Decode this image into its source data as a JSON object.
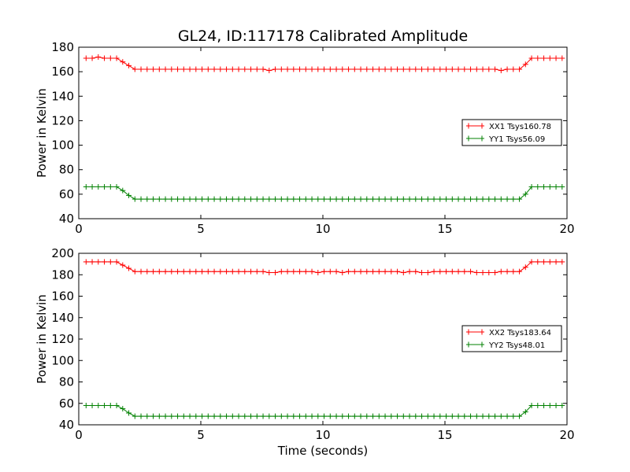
{
  "title": "GL24, ID:117178 Calibrated Amplitude",
  "chart_data": [
    {
      "type": "line",
      "ylabel": "Power in Kelvin",
      "xlabel": "",
      "xlim": [
        0,
        20
      ],
      "ylim": [
        40,
        180
      ],
      "xticks": [
        "0",
        "5",
        "10",
        "15",
        "20"
      ],
      "yticks": [
        "40",
        "60",
        "80",
        "100",
        "120",
        "140",
        "160",
        "180"
      ],
      "legend_position": "center-right",
      "series": [
        {
          "name": "XX1 Tsys160.78",
          "color": "#ff0000",
          "x": [
            0.3,
            0.55,
            0.8,
            1.05,
            1.3,
            1.55,
            1.8,
            2.05,
            2.3,
            2.55,
            2.8,
            3.05,
            3.3,
            3.55,
            3.8,
            4.05,
            4.3,
            4.55,
            4.8,
            5.05,
            5.3,
            5.55,
            5.8,
            6.05,
            6.3,
            6.55,
            6.8,
            7.05,
            7.3,
            7.55,
            7.8,
            8.05,
            8.3,
            8.55,
            8.8,
            9.05,
            9.3,
            9.55,
            9.8,
            10.05,
            10.3,
            10.55,
            10.8,
            11.05,
            11.3,
            11.55,
            11.8,
            12.05,
            12.3,
            12.55,
            12.8,
            13.05,
            13.3,
            13.55,
            13.8,
            14.05,
            14.3,
            14.55,
            14.8,
            15.05,
            15.3,
            15.55,
            15.8,
            16.05,
            16.3,
            16.55,
            16.8,
            17.05,
            17.3,
            17.55,
            17.8,
            18.05,
            18.3,
            18.55,
            18.8,
            19.05,
            19.3,
            19.55,
            19.8
          ],
          "y": [
            171,
            171,
            172,
            171,
            171,
            171,
            168,
            165,
            162,
            162,
            162,
            162,
            162,
            162,
            162,
            162,
            162,
            162,
            162,
            162,
            162,
            162,
            162,
            162,
            162,
            162,
            162,
            162,
            162,
            162,
            161,
            162,
            162,
            162,
            162,
            162,
            162,
            162,
            162,
            162,
            162,
            162,
            162,
            162,
            162,
            162,
            162,
            162,
            162,
            162,
            162,
            162,
            162,
            162,
            162,
            162,
            162,
            162,
            162,
            162,
            162,
            162,
            162,
            162,
            162,
            162,
            162,
            162,
            161,
            162,
            162,
            162,
            166,
            171,
            171,
            171,
            171,
            171,
            171
          ]
        },
        {
          "name": "YY1 Tsys56.09",
          "color": "#008000",
          "x": [
            0.3,
            0.55,
            0.8,
            1.05,
            1.3,
            1.55,
            1.8,
            2.05,
            2.3,
            2.55,
            2.8,
            3.05,
            3.3,
            3.55,
            3.8,
            4.05,
            4.3,
            4.55,
            4.8,
            5.05,
            5.3,
            5.55,
            5.8,
            6.05,
            6.3,
            6.55,
            6.8,
            7.05,
            7.3,
            7.55,
            7.8,
            8.05,
            8.3,
            8.55,
            8.8,
            9.05,
            9.3,
            9.55,
            9.8,
            10.05,
            10.3,
            10.55,
            10.8,
            11.05,
            11.3,
            11.55,
            11.8,
            12.05,
            12.3,
            12.55,
            12.8,
            13.05,
            13.3,
            13.55,
            13.8,
            14.05,
            14.3,
            14.55,
            14.8,
            15.05,
            15.3,
            15.55,
            15.8,
            16.05,
            16.3,
            16.55,
            16.8,
            17.05,
            17.3,
            17.55,
            17.8,
            18.05,
            18.3,
            18.55,
            18.8,
            19.05,
            19.3,
            19.55,
            19.8
          ],
          "y": [
            66,
            66,
            66,
            66,
            66,
            66,
            63,
            59,
            56,
            56,
            56,
            56,
            56,
            56,
            56,
            56,
            56,
            56,
            56,
            56,
            56,
            56,
            56,
            56,
            56,
            56,
            56,
            56,
            56,
            56,
            56,
            56,
            56,
            56,
            56,
            56,
            56,
            56,
            56,
            56,
            56,
            56,
            56,
            56,
            56,
            56,
            56,
            56,
            56,
            56,
            56,
            56,
            56,
            56,
            56,
            56,
            56,
            56,
            56,
            56,
            56,
            56,
            56,
            56,
            56,
            56,
            56,
            56,
            56,
            56,
            56,
            56,
            60,
            66,
            66,
            66,
            66,
            66,
            66
          ]
        }
      ]
    },
    {
      "type": "line",
      "ylabel": "Power in Kelvin",
      "xlabel": "Time (seconds)",
      "xlim": [
        0,
        20
      ],
      "ylim": [
        40,
        200
      ],
      "xticks": [
        "0",
        "5",
        "10",
        "15",
        "20"
      ],
      "yticks": [
        "40",
        "60",
        "80",
        "100",
        "120",
        "140",
        "160",
        "180",
        "200"
      ],
      "legend_position": "center-right",
      "series": [
        {
          "name": "XX2 Tsys183.64",
          "color": "#ff0000",
          "x": [
            0.3,
            0.55,
            0.8,
            1.05,
            1.3,
            1.55,
            1.8,
            2.05,
            2.3,
            2.55,
            2.8,
            3.05,
            3.3,
            3.55,
            3.8,
            4.05,
            4.3,
            4.55,
            4.8,
            5.05,
            5.3,
            5.55,
            5.8,
            6.05,
            6.3,
            6.55,
            6.8,
            7.05,
            7.3,
            7.55,
            7.8,
            8.05,
            8.3,
            8.55,
            8.8,
            9.05,
            9.3,
            9.55,
            9.8,
            10.05,
            10.3,
            10.55,
            10.8,
            11.05,
            11.3,
            11.55,
            11.8,
            12.05,
            12.3,
            12.55,
            12.8,
            13.05,
            13.3,
            13.55,
            13.8,
            14.05,
            14.3,
            14.55,
            14.8,
            15.05,
            15.3,
            15.55,
            15.8,
            16.05,
            16.3,
            16.55,
            16.8,
            17.05,
            17.3,
            17.55,
            17.8,
            18.05,
            18.3,
            18.55,
            18.8,
            19.05,
            19.3,
            19.55,
            19.8
          ],
          "y": [
            192,
            192,
            192,
            192,
            192,
            192,
            189,
            186,
            183,
            183,
            183,
            183,
            183,
            183,
            183,
            183,
            183,
            183,
            183,
            183,
            183,
            183,
            183,
            183,
            183,
            183,
            183,
            183,
            183,
            183,
            182,
            182,
            183,
            183,
            183,
            183,
            183,
            183,
            182,
            183,
            183,
            183,
            182,
            183,
            183,
            183,
            183,
            183,
            183,
            183,
            183,
            183,
            182,
            183,
            183,
            182,
            182,
            183,
            183,
            183,
            183,
            183,
            183,
            183,
            182,
            182,
            182,
            182,
            183,
            183,
            183,
            183,
            187,
            192,
            192,
            192,
            192,
            192,
            192
          ]
        },
        {
          "name": "YY2 Tsys48.01",
          "color": "#008000",
          "x": [
            0.3,
            0.55,
            0.8,
            1.05,
            1.3,
            1.55,
            1.8,
            2.05,
            2.3,
            2.55,
            2.8,
            3.05,
            3.3,
            3.55,
            3.8,
            4.05,
            4.3,
            4.55,
            4.8,
            5.05,
            5.3,
            5.55,
            5.8,
            6.05,
            6.3,
            6.55,
            6.8,
            7.05,
            7.3,
            7.55,
            7.8,
            8.05,
            8.3,
            8.55,
            8.8,
            9.05,
            9.3,
            9.55,
            9.8,
            10.05,
            10.3,
            10.55,
            10.8,
            11.05,
            11.3,
            11.55,
            11.8,
            12.05,
            12.3,
            12.55,
            12.8,
            13.05,
            13.3,
            13.55,
            13.8,
            14.05,
            14.3,
            14.55,
            14.8,
            15.05,
            15.3,
            15.55,
            15.8,
            16.05,
            16.3,
            16.55,
            16.8,
            17.05,
            17.3,
            17.55,
            17.8,
            18.05,
            18.3,
            18.55,
            18.8,
            19.05,
            19.3,
            19.55,
            19.8
          ],
          "y": [
            58,
            58,
            58,
            58,
            58,
            58,
            55,
            51,
            48,
            48,
            48,
            48,
            48,
            48,
            48,
            48,
            48,
            48,
            48,
            48,
            48,
            48,
            48,
            48,
            48,
            48,
            48,
            48,
            48,
            48,
            48,
            48,
            48,
            48,
            48,
            48,
            48,
            48,
            48,
            48,
            48,
            48,
            48,
            48,
            48,
            48,
            48,
            48,
            48,
            48,
            48,
            48,
            48,
            48,
            48,
            48,
            48,
            48,
            48,
            48,
            48,
            48,
            48,
            48,
            48,
            48,
            48,
            48,
            48,
            48,
            48,
            48,
            52,
            58,
            58,
            58,
            58,
            58,
            58
          ]
        }
      ]
    }
  ]
}
